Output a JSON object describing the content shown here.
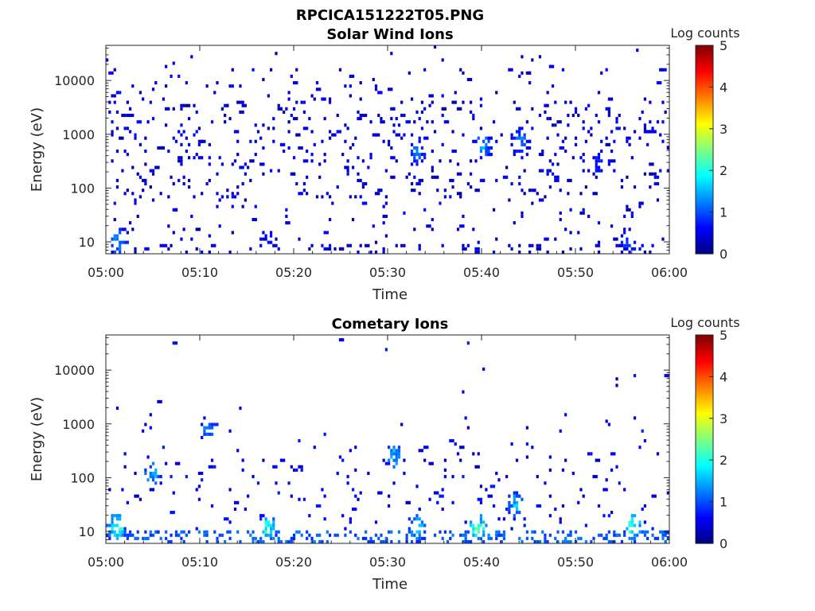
{
  "figure_title": "RPCICA151222T05.PNG",
  "chart_data": [
    {
      "type": "heatmap",
      "title": "Solar Wind Ions",
      "xlabel": "Time",
      "ylabel": "Energy (eV)",
      "x_ticks": [
        "05:00",
        "05:10",
        "05:20",
        "05:30",
        "05:40",
        "05:50",
        "06:00"
      ],
      "y_ticks": [
        "10",
        "100",
        "1000",
        "10000"
      ],
      "y_scale": "log",
      "x_range_minutes": [
        0,
        60
      ],
      "y_range_ev": [
        6,
        45000
      ],
      "colorbar": {
        "label": "Log counts",
        "ticks": [
          "0",
          "1",
          "2",
          "3",
          "4",
          "5"
        ],
        "range": [
          0,
          5
        ],
        "colormap": "jet"
      },
      "description_of_values": "Sparse scattered counts across all energies 10 eV - 30 keV; mostly log counts 0-1, bright columns near 10 eV, small enhancements near 05:33, 05:40, 05:44 and 05:52 at 300-1000 eV.",
      "hotspots": [
        {
          "t": 1.2,
          "e": 10,
          "v": 1.6
        },
        {
          "t": 17.0,
          "e": 10,
          "v": 0.8
        },
        {
          "t": 33.0,
          "e": 450,
          "v": 1.3
        },
        {
          "t": 40.0,
          "e": 600,
          "v": 1.6
        },
        {
          "t": 44.0,
          "e": 800,
          "v": 1.4
        },
        {
          "t": 52.5,
          "e": 300,
          "v": 1.0
        },
        {
          "t": 55.5,
          "e": 10,
          "v": 1.2
        }
      ]
    },
    {
      "type": "heatmap",
      "title": "Cometary Ions",
      "xlabel": "Time",
      "ylabel": "Energy (eV)",
      "x_ticks": [
        "05:00",
        "05:10",
        "05:20",
        "05:30",
        "05:40",
        "05:50",
        "06:00"
      ],
      "y_ticks": [
        "10",
        "100",
        "1000",
        "10000"
      ],
      "y_scale": "log",
      "x_range_minutes": [
        0,
        60
      ],
      "y_range_ev": [
        6,
        45000
      ],
      "colorbar": {
        "label": "Log counts",
        "ticks": [
          "0",
          "1",
          "2",
          "3",
          "4",
          "5"
        ],
        "range": [
          0,
          5
        ],
        "colormap": "jet"
      },
      "description_of_values": "Counts concentrated below ~300 eV; vertical bursts at the lowest energies reaching log counts ~2.5; cluster at 05:04-05:06 around 50-200 eV; few isolated points up to ~10 keV.",
      "hotspots": [
        {
          "t": 1.0,
          "e": 12,
          "v": 2.4
        },
        {
          "t": 4.8,
          "e": 120,
          "v": 1.8
        },
        {
          "t": 10.8,
          "e": 800,
          "v": 1.5
        },
        {
          "t": 17.2,
          "e": 12,
          "v": 2.5
        },
        {
          "t": 30.5,
          "e": 250,
          "v": 1.8
        },
        {
          "t": 33.0,
          "e": 12,
          "v": 2.0
        },
        {
          "t": 39.5,
          "e": 12,
          "v": 2.6
        },
        {
          "t": 43.5,
          "e": 30,
          "v": 1.8
        },
        {
          "t": 56.0,
          "e": 12,
          "v": 2.6
        }
      ]
    }
  ]
}
